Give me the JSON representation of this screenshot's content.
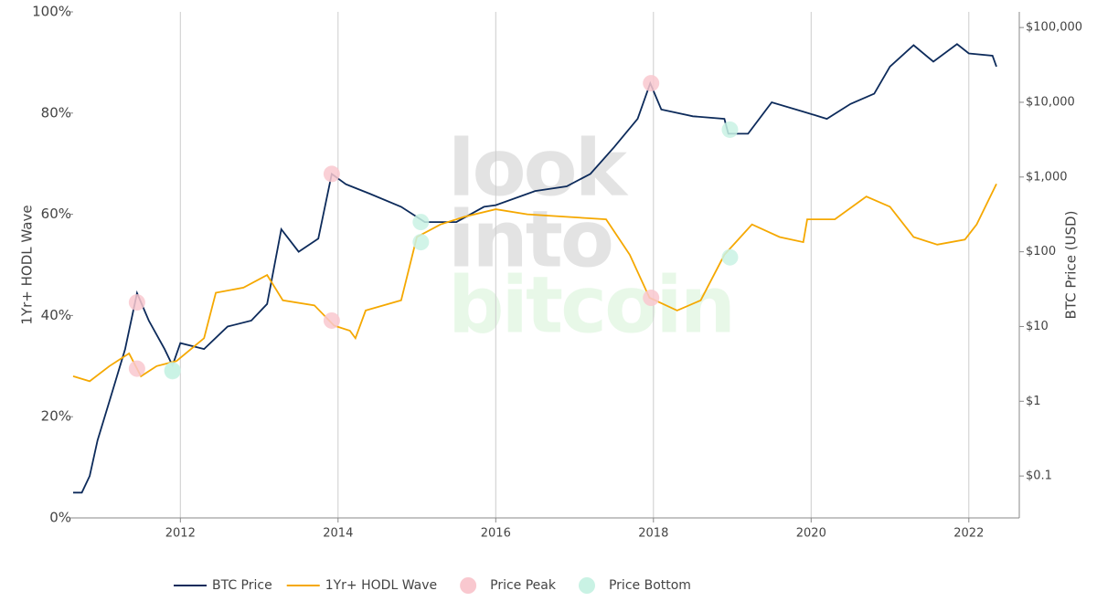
{
  "chart_data": {
    "type": "line",
    "watermark": [
      "look",
      "into",
      "bitcoin"
    ],
    "y_label": "1Yr+ HODL Wave",
    "y2_label": "BTC Price (USD)",
    "xlim": [
      2010.64,
      2022.64
    ],
    "xticks": [
      2012,
      2014,
      2016,
      2018,
      2020,
      2022
    ],
    "ylim": [
      0,
      100
    ],
    "yticks": [
      {
        "value": 0,
        "label": "0%"
      },
      {
        "value": 20,
        "label": "20%"
      },
      {
        "value": 40,
        "label": "40%"
      },
      {
        "value": 60,
        "label": "60%"
      },
      {
        "value": 80,
        "label": "80%"
      },
      {
        "value": 100,
        "label": "100%"
      }
    ],
    "y2lim": [
      0.0275,
      162000
    ],
    "y2scale": "log",
    "y2ticks": [
      {
        "value": 0.1,
        "label": "$0.1"
      },
      {
        "value": 1,
        "label": "$1"
      },
      {
        "value": 10,
        "label": "$10"
      },
      {
        "value": 100,
        "label": "$100"
      },
      {
        "value": 1000,
        "label": "$1,000"
      },
      {
        "value": 10000,
        "label": "$10,000"
      },
      {
        "value": 100000,
        "label": "$100,000"
      }
    ],
    "grid": "x",
    "legend": "bottom",
    "series": [
      {
        "name": "BTC Price",
        "color": "#0d2b5b",
        "axis": "y2",
        "kind": "line",
        "x": [
          2010.64,
          2010.75,
          2010.85,
          2010.95,
          2011.1,
          2011.3,
          2011.45,
          2011.6,
          2011.8,
          2011.9,
          2012.0,
          2012.3,
          2012.6,
          2012.9,
          2013.1,
          2013.28,
          2013.5,
          2013.75,
          2013.92,
          2014.1,
          2014.4,
          2014.8,
          2015.1,
          2015.5,
          2015.85,
          2016.0,
          2016.5,
          2016.9,
          2017.2,
          2017.5,
          2017.8,
          2017.96,
          2018.1,
          2018.5,
          2018.9,
          2018.95,
          2019.2,
          2019.5,
          2019.9,
          2020.2,
          2020.5,
          2020.8,
          2021.0,
          2021.3,
          2021.55,
          2021.85,
          2022.0,
          2022.3,
          2022.35
        ],
        "values": [
          0.06,
          0.06,
          0.1,
          0.3,
          1,
          5,
          28,
          12,
          5,
          3,
          6,
          5,
          10,
          12,
          20,
          200,
          100,
          150,
          1100,
          800,
          600,
          400,
          250,
          250,
          400,
          420,
          650,
          750,
          1100,
          2500,
          6000,
          18000,
          8000,
          6500,
          6000,
          3800,
          3800,
          10000,
          7500,
          6000,
          9500,
          13000,
          30000,
          58000,
          35000,
          60000,
          45000,
          42000,
          30000
        ]
      },
      {
        "name": "1Yr+ HODL Wave",
        "color": "#f5a800",
        "axis": "y",
        "kind": "line",
        "x": [
          2010.64,
          2010.85,
          2011.1,
          2011.35,
          2011.5,
          2011.7,
          2011.95,
          2012.3,
          2012.45,
          2012.8,
          2013.1,
          2013.3,
          2013.7,
          2013.95,
          2014.15,
          2014.22,
          2014.35,
          2014.8,
          2015.0,
          2015.3,
          2015.6,
          2016.0,
          2016.4,
          2016.9,
          2017.4,
          2017.7,
          2017.95,
          2018.3,
          2018.6,
          2018.9,
          2019.25,
          2019.6,
          2019.9,
          2019.95,
          2020.3,
          2020.7,
          2021.0,
          2021.3,
          2021.6,
          2021.95,
          2022.1,
          2022.35
        ],
        "values": [
          28,
          27,
          30,
          32.5,
          28,
          30,
          31,
          35.5,
          44.5,
          45.5,
          48,
          43,
          42,
          38,
          37,
          35.5,
          41,
          43,
          55.5,
          58,
          59.5,
          61,
          60,
          59.5,
          59,
          52,
          43.5,
          41,
          43,
          52,
          58,
          55.5,
          54.5,
          59,
          59,
          63.5,
          61.5,
          55.5,
          54,
          55,
          58,
          66
        ]
      },
      {
        "name": "Price Peak",
        "color": "#f9c8cf",
        "kind": "marker",
        "x": [
          2011.45,
          2013.92,
          2017.97
        ],
        "values": [
          29.5,
          39,
          43.5
        ],
        "prices": [
          21,
          1100,
          18000
        ]
      },
      {
        "name": "Price Bottom",
        "color": "#c9f2e4",
        "kind": "marker",
        "x": [
          2011.9,
          2015.05,
          2018.97
        ],
        "values": [
          29,
          54.5,
          51.5
        ],
        "prices": [
          2.6,
          250,
          4300
        ]
      }
    ]
  }
}
